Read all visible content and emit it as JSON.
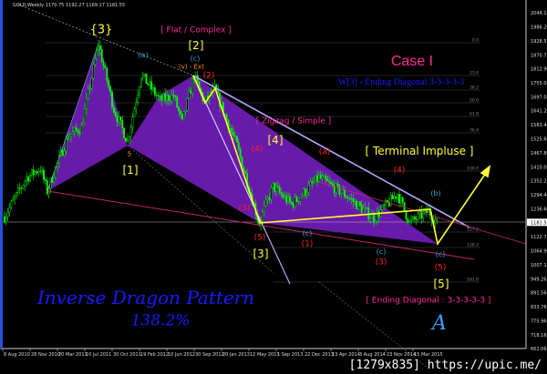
{
  "header": {
    "symbol": "GOLD,Weekly",
    "ohlc": "1170.75 1192.27 1169.17 1181.55"
  },
  "chart_data": {
    "type": "candlestick",
    "title": "",
    "symbol": "GOLD",
    "timeframe": "Weekly",
    "ylim": [
      662.06,
      2044.16
    ],
    "price_ticks": [
      "2044.16",
      "1986.26",
      "1928.55",
      "1870.75",
      "1812.96",
      "1755.06",
      "1697.05",
      "1641.26",
      "1583.46",
      "1525.66",
      "1467.86",
      "1410.06",
      "1352.26",
      "1294.46",
      "1236.66",
      "1181.55",
      "1122.75",
      "1064.96",
      "1007.16",
      "949.26",
      "891.56",
      "833.76",
      "775.96",
      "718.16",
      "662.06"
    ],
    "current_price": "1181.55",
    "date_ticks": [
      "8 Aug 2010",
      "28 Nov 2010",
      "20 Mar 2011",
      "10 Jul 2011",
      "30 Oct 2011",
      "19 Feb 2012",
      "10 Jun 2012",
      "30 Sep 2012",
      "20 Jan 2013",
      "12 May 2013",
      "1 Sep 2013",
      "22 Dec 2013",
      "13 Apr 2014",
      "3 Aug 2014",
      "23 Nov 2014",
      "15 Mar 2015"
    ],
    "price_path": [
      [
        "2010-08-15",
        1205
      ],
      [
        "2010-11-14",
        1366
      ],
      [
        "2011-01-09",
        1404
      ],
      [
        "2011-02-06",
        1310
      ],
      [
        "2011-05-01",
        1535
      ],
      [
        "2011-06-26",
        1572
      ],
      [
        "2011-09-04",
        1917
      ],
      [
        "2011-11-06",
        1647
      ],
      [
        "2012-01-01",
        1516
      ],
      [
        "2012-02-26",
        1790
      ],
      [
        "2012-05-13",
        1684
      ],
      [
        "2012-07-08",
        1703
      ],
      [
        "2012-08-12",
        1590
      ],
      [
        "2012-09-30",
        1786
      ],
      [
        "2012-11-11",
        1673
      ],
      [
        "2012-12-23",
        1730
      ],
      [
        "2013-03-24",
        1497
      ],
      [
        "2013-06-23",
        1179
      ],
      [
        "2013-08-18",
        1329
      ],
      [
        "2013-11-03",
        1254
      ],
      [
        "2014-02-23",
        1366
      ],
      [
        "2014-06-15",
        1291
      ],
      [
        "2014-10-05",
        1198
      ],
      [
        "2015-01-11",
        1300
      ],
      [
        "2015-03-01",
        1179
      ],
      [
        "2015-05-17",
        1228
      ],
      [
        "2015-06-21",
        1181.55
      ]
    ],
    "fib_levels": [
      "0.0",
      "23.6",
      "38.2",
      "50.0",
      "61.8",
      "76.4",
      "100.0",
      "127.2",
      "138.2",
      "161.8"
    ],
    "colors": {
      "candles": "#00ff00",
      "pattern_fill": "#7a1fc8",
      "projection": "#ffff33",
      "trendline": "#b9a6ff",
      "support": "#c0266e",
      "background": "#000000"
    }
  },
  "labels": {
    "w3": "{3}",
    "flat": "[ Flat / Complex ]",
    "w2": "[2]",
    "c_top": "(c)",
    "v_ext": "(v) - Ext",
    "r2": "(2)",
    "case": "Case I",
    "w3_ending": "W[3] - Ending Diagonal 3-3-3-3-3",
    "zigzag": "[ Zigzag / Simple ]",
    "w4": "[4]",
    "r4_left": "(4)",
    "a_red": "(a)",
    "terminal": "[ Terminal Impluse ]",
    "r4_right": "(4)",
    "b_cyan": "(b)",
    "w1": "[1]",
    "five_small": "5",
    "a_cyan": "(a)",
    "r3": "(3)",
    "w3b": "[3]",
    "r5_left": "(5)",
    "r1": "(1)",
    "c_mid": "(c)",
    "c_mid2": "(c)",
    "r3_right": "(3)",
    "c_right": "(c)",
    "r5_right": "(5)",
    "w5": "[5]",
    "ending": "[ Ending Diagonal : 3-3-3-3-3 ]",
    "dragon": "Inverse Dragon Pattern",
    "dragon_pct": "138.2%",
    "script_a": "A",
    "watermark": "[1279x835] https://upic.me/"
  }
}
